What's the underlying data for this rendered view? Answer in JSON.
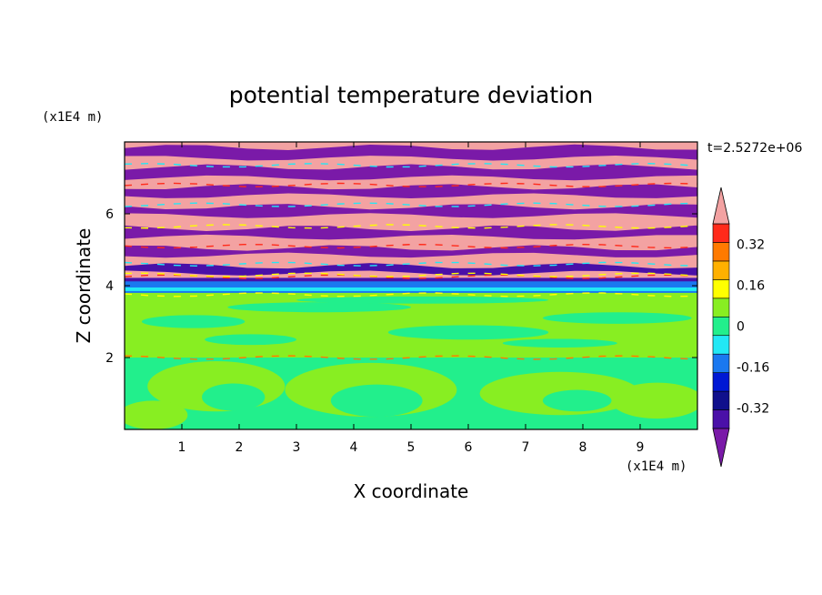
{
  "chart_data": {
    "type": "heatmap",
    "title": "potential temperature deviation",
    "xlabel": "X coordinate",
    "ylabel": "Z coordinate",
    "x_unit": "(x1E4 m)",
    "y_unit": "(x1E4 m)",
    "time_label": "t=2.5272e+06",
    "xlim": [
      0,
      10
    ],
    "ylim": [
      0,
      8
    ],
    "x_ticks": [
      {
        "value": 1,
        "label": "1"
      },
      {
        "value": 2,
        "label": "2"
      },
      {
        "value": 3,
        "label": "3"
      },
      {
        "value": 4,
        "label": "4"
      },
      {
        "value": 5,
        "label": "5"
      },
      {
        "value": 6,
        "label": "6"
      },
      {
        "value": 7,
        "label": "7"
      },
      {
        "value": 8,
        "label": "8"
      },
      {
        "value": 9,
        "label": "9"
      }
    ],
    "y_ticks": [
      {
        "value": 2,
        "label": "2"
      },
      {
        "value": 4,
        "label": "4"
      },
      {
        "value": 6,
        "label": "6"
      }
    ],
    "colorbar": {
      "levels": [
        -0.48,
        -0.4,
        -0.32,
        -0.24,
        -0.16,
        -0.08,
        0,
        0.08,
        0.16,
        0.24,
        0.32,
        0.4,
        0.48
      ],
      "colors": [
        "#7a1aa8",
        "#4a10a8",
        "#10108c",
        "#0018d4",
        "#1a78f0",
        "#22e8f5",
        "#22ef8c",
        "#88ee22",
        "#ffff00",
        "#ffb000",
        "#ff7a00",
        "#ff2a1a",
        "#f3a2a2"
      ],
      "labeled_ticks": [
        {
          "value": 0.32,
          "label": "0.32"
        },
        {
          "value": 0.16,
          "label": "0.16"
        },
        {
          "value": 0,
          "label": "0"
        },
        {
          "value": -0.16,
          "label": "-0.16"
        },
        {
          "value": -0.32,
          "label": "-0.32"
        }
      ],
      "extend": "both"
    },
    "layers": [
      {
        "z_range": [
          0,
          2.0
        ],
        "fill": "#22ef8c",
        "pattern": "green-yellow blobs"
      },
      {
        "z_range": [
          2.0,
          3.8
        ],
        "fill": "#88ee22",
        "pattern": "yellow-green bands"
      },
      {
        "z_range": [
          3.8,
          4.2
        ],
        "fill": "#1a78f0",
        "pattern": "cyan/blue stripe"
      },
      {
        "z_range": [
          4.2,
          8.0
        ],
        "fill": "#f3a2a2",
        "pattern": "alternating pink/purple bands"
      }
    ]
  }
}
